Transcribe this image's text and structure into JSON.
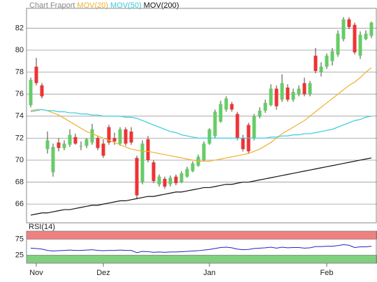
{
  "chart_data": [
    {
      "type": "candlestick",
      "title": "Chart Fraport",
      "categories": [
        null,
        "Nov",
        null,
        null,
        null,
        null,
        null,
        null,
        null,
        null,
        null,
        null,
        null,
        "Dez",
        null,
        null,
        null,
        null,
        null,
        null,
        null,
        null,
        null,
        null,
        null,
        null,
        null,
        null,
        null,
        null,
        null,
        null,
        "Jan",
        null,
        null,
        null,
        null,
        null,
        null,
        null,
        null,
        null,
        null,
        null,
        null,
        null,
        null,
        null,
        null,
        null,
        null,
        null,
        null,
        "Feb",
        null,
        null,
        null,
        null,
        null,
        null,
        null,
        null
      ],
      "open": [
        75,
        78.5,
        76.8,
        71,
        68.9,
        71.6,
        71.1,
        71.4,
        72.1,
        71.3,
        71.3,
        71.6,
        72,
        71.5,
        73,
        72,
        71.5,
        72.8,
        72.6,
        70.2,
        68,
        71.9,
        69.8,
        67.8,
        68.3,
        67.8,
        68.5,
        68,
        68.5,
        69,
        69.5,
        70,
        71.5,
        72.2,
        73.5,
        74.6,
        75.1,
        74.2,
        72,
        73.2,
        72,
        74,
        74.5,
        75,
        76.5,
        75.5,
        76.6,
        75.5,
        76,
        77,
        76,
        79.5,
        78,
        78.5,
        79,
        79.6,
        81,
        82.8,
        82.3,
        79.5,
        81,
        81.3
      ],
      "high": [
        77.5,
        79.3,
        77,
        72.6,
        71.5,
        72,
        71.8,
        72.8,
        72.4,
        71.7,
        72,
        73.3,
        72.2,
        71.9,
        73.2,
        72.5,
        73,
        73,
        73,
        70.4,
        71.8,
        72.2,
        70,
        68.7,
        68.5,
        68.6,
        68.7,
        69,
        69.4,
        69.9,
        70.5,
        71.7,
        72.9,
        74.6,
        75.4,
        75.8,
        75.3,
        74.4,
        72.3,
        73.4,
        74.2,
        74.8,
        75.5,
        76.9,
        76.8,
        77.8,
        76.9,
        76.5,
        76.8,
        77.5,
        77.2,
        80.2,
        78.9,
        79.7,
        80.2,
        81.8,
        83,
        83,
        82.5,
        81.7,
        81.8,
        82.6
      ],
      "low": [
        74.8,
        76.8,
        75.6,
        70.6,
        68.5,
        70.8,
        70.9,
        71.2,
        71.4,
        70.9,
        71.1,
        71.4,
        70.9,
        70.2,
        71.4,
        71.4,
        71.3,
        71.3,
        71.4,
        66.5,
        67.8,
        69.8,
        67.9,
        67.6,
        67.4,
        67.6,
        67.7,
        67.9,
        68.4,
        68.9,
        69.4,
        69.9,
        71.4,
        72,
        73.4,
        74.4,
        74.4,
        71.8,
        70.8,
        70.6,
        71.8,
        73.8,
        74.3,
        74.9,
        74.6,
        75.3,
        75.3,
        75.3,
        75.8,
        75.8,
        75.8,
        77.9,
        77.6,
        78.3,
        78.6,
        79.4,
        80.8,
        81.9,
        79.6,
        79.2,
        80.9,
        81.1
      ],
      "close": [
        77.3,
        77,
        75.8,
        71.8,
        71.2,
        71.1,
        71.5,
        72.3,
        71.5,
        71.3,
        71.9,
        72.8,
        71.1,
        70.4,
        71.6,
        71.7,
        72.8,
        71.5,
        71.6,
        66.8,
        71.5,
        70,
        68.1,
        68.5,
        67.6,
        68.4,
        67.9,
        68.8,
        69.2,
        69.7,
        70.3,
        71.5,
        72.8,
        74.4,
        75.1,
        75.6,
        74.6,
        72,
        71,
        70.8,
        74,
        74.5,
        75.2,
        76.5,
        74.9,
        77,
        75.5,
        76.2,
        76.5,
        76,
        77,
        78.1,
        78.5,
        79.5,
        79.9,
        81.5,
        82.8,
        82.1,
        79.8,
        81.4,
        81.5,
        82.5
      ],
      "up_color": "#66cc66",
      "down_color": "#ee3333",
      "series": [
        {
          "name": "MOV(20)",
          "color": "#f0b030",
          "values": [
            74.5,
            74.6,
            74.6,
            74.5,
            74.3,
            74.1,
            73.8,
            73.5,
            73.2,
            72.9,
            72.6,
            72.4,
            72.2,
            72.0,
            71.8,
            71.6,
            71.4,
            71.2,
            71.0,
            70.9,
            70.8,
            70.8,
            70.7,
            70.6,
            70.5,
            70.4,
            70.3,
            70.2,
            70.1,
            70.0,
            69.9,
            69.9,
            69.9,
            70.0,
            70.1,
            70.2,
            70.3,
            70.4,
            70.5,
            70.6,
            70.8,
            71.0,
            71.3,
            71.6,
            72.0,
            72.4,
            72.7,
            73.0,
            73.3,
            73.6,
            74.0,
            74.4,
            74.8,
            75.2,
            75.6,
            76.0,
            76.4,
            76.8,
            77.1,
            77.5,
            78.0,
            78.4
          ]
        },
        {
          "name": "MOV(50)",
          "color": "#33ccdd",
          "values": [
            74.4,
            74.5,
            74.6,
            74.5,
            74.5,
            74.4,
            74.4,
            74.3,
            74.3,
            74.2,
            74.2,
            74.1,
            74.1,
            74.0,
            74.0,
            74.0,
            74.0,
            73.9,
            73.9,
            73.8,
            73.6,
            73.4,
            73.2,
            73.0,
            72.8,
            72.6,
            72.5,
            72.3,
            72.2,
            72.1,
            72.0,
            72.0,
            72.0,
            72.0,
            72.0,
            72.0,
            72.0,
            72.0,
            72.0,
            72.0,
            72.0,
            72.0,
            72.0,
            72.1,
            72.1,
            72.2,
            72.2,
            72.3,
            72.3,
            72.4,
            72.4,
            72.5,
            72.6,
            72.7,
            72.8,
            73.0,
            73.2,
            73.4,
            73.6,
            73.7,
            73.9,
            74.0
          ]
        },
        {
          "name": "MOV(200)",
          "color": "#111111",
          "values": [
            65.0,
            65.1,
            65.2,
            65.2,
            65.3,
            65.4,
            65.5,
            65.5,
            65.6,
            65.7,
            65.8,
            65.9,
            65.9,
            66.0,
            66.1,
            66.2,
            66.3,
            66.3,
            66.4,
            66.5,
            66.6,
            66.7,
            66.7,
            66.8,
            66.9,
            67.0,
            67.1,
            67.1,
            67.2,
            67.3,
            67.4,
            67.5,
            67.5,
            67.6,
            67.7,
            67.8,
            67.8,
            67.9,
            68.0,
            68.0,
            68.1,
            68.2,
            68.3,
            68.4,
            68.5,
            68.6,
            68.7,
            68.8,
            68.9,
            69.0,
            69.1,
            69.2,
            69.3,
            69.4,
            69.5,
            69.6,
            69.7,
            69.8,
            69.9,
            70.0,
            70.1,
            70.2
          ]
        }
      ],
      "ylim": [
        64.3,
        83.8
      ],
      "yticks": [
        66,
        68,
        70,
        72,
        74,
        76,
        78,
        80,
        82
      ],
      "grid": true
    },
    {
      "type": "line",
      "title": "RSI(14)",
      "color": "#2222cc",
      "values": [
        47,
        46,
        44,
        40,
        38,
        39,
        40,
        41,
        40,
        40,
        41,
        42,
        40,
        39,
        40,
        40,
        41,
        40,
        40,
        33,
        37,
        36,
        34,
        35,
        34,
        35,
        35,
        36,
        37,
        38,
        39,
        41,
        43,
        46,
        49,
        50,
        48,
        44,
        42,
        43,
        46,
        47,
        48,
        50,
        47,
        50,
        48,
        49,
        49,
        47,
        48,
        52,
        52,
        53,
        53,
        55,
        58,
        56,
        49,
        51,
        51,
        53
      ],
      "ylim": [
        0,
        100
      ],
      "yticks": [
        25,
        75
      ],
      "upper_band_color": "#f08080",
      "lower_band_color": "#80d080"
    }
  ]
}
